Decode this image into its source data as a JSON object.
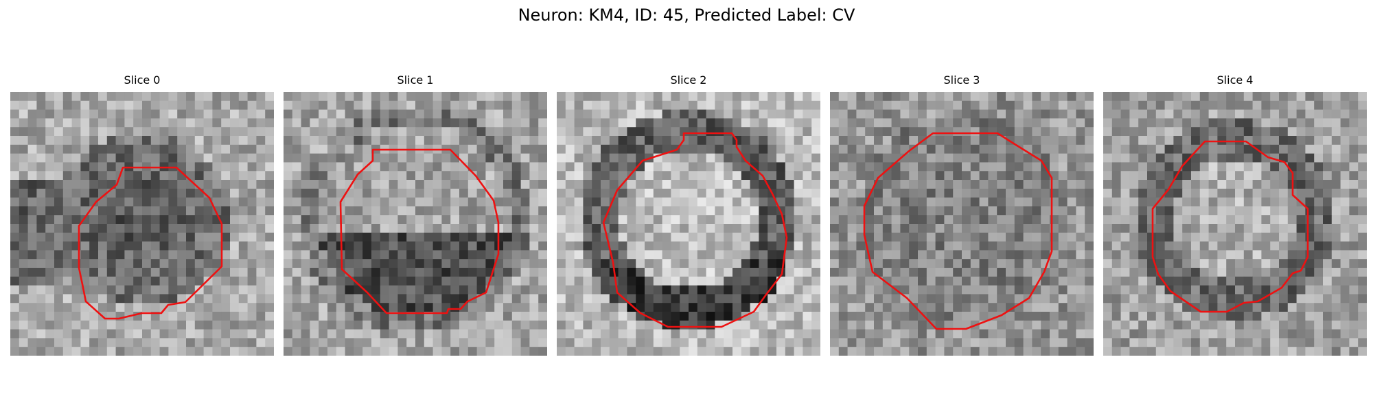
{
  "figure": {
    "title": "Neuron: KM4, ID: 45, Predicted Label: CV",
    "outline_color": "#ee1111",
    "slices": [
      {
        "label": "Slice 0",
        "interior": "dark",
        "seed": 11
      },
      {
        "label": "Slice 1",
        "interior": "light-top-dark-bottom",
        "seed": 23
      },
      {
        "label": "Slice 2",
        "interior": "light-center-dark-rim",
        "seed": 37
      },
      {
        "label": "Slice 3",
        "interior": "mottled",
        "seed": 41
      },
      {
        "label": "Slice 4",
        "interior": "light-center",
        "seed": 53
      }
    ]
  }
}
